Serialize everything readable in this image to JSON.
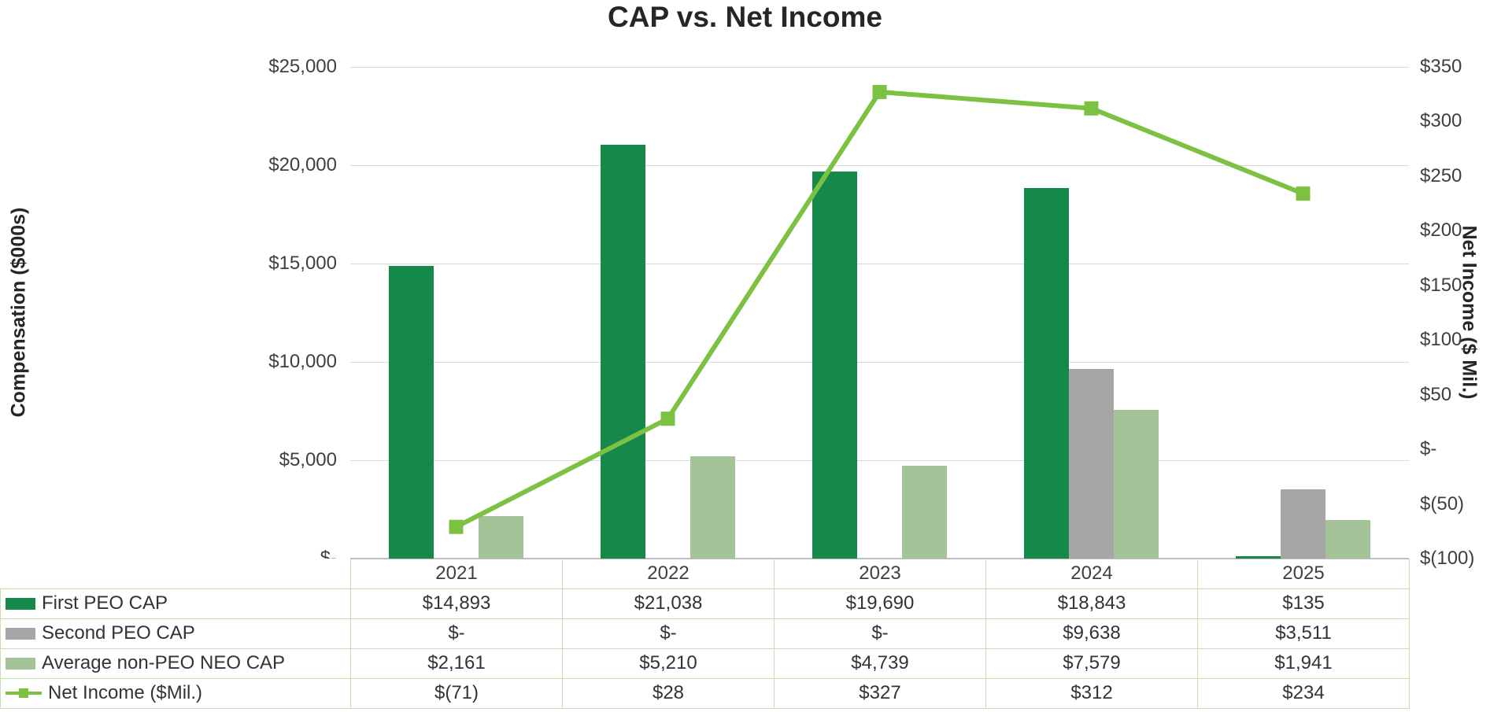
{
  "title": "CAP vs. Net Income",
  "left_axis": {
    "label": "Compensation ($000s)",
    "ticks": [
      "$25,000",
      "$20,000",
      "$15,000",
      "$10,000",
      "$5,000",
      "$-"
    ]
  },
  "right_axis": {
    "label": "Net Income ($ Mil.)",
    "ticks": [
      "$350",
      "$300",
      "$250",
      "$200",
      "$150",
      "$100",
      "$50",
      "$-",
      "$(50)",
      "$(100)"
    ]
  },
  "chart_data": {
    "type": "combo-bar-line",
    "title": "CAP vs. Net Income",
    "categories": [
      "2021",
      "2022",
      "2023",
      "2024",
      "2025"
    ],
    "bar_series": [
      {
        "name": "First PEO CAP",
        "color": "#15894a",
        "values": [
          14893,
          21038,
          19690,
          18843,
          135
        ],
        "display": [
          "$14,893",
          "$21,038",
          "$19,690",
          "$18,843",
          "$135"
        ]
      },
      {
        "name": "Second PEO CAP",
        "color": "#a6a6a6",
        "values": [
          0,
          0,
          0,
          9638,
          3511
        ],
        "display": [
          "$-",
          "$-",
          "$-",
          "$9,638",
          "$3,511"
        ]
      },
      {
        "name": "Average non-PEO NEO CAP",
        "color": "#a4c398",
        "values": [
          2161,
          5210,
          4739,
          7579,
          1941
        ],
        "display": [
          "$2,161",
          "$5,210",
          "$4,739",
          "$7,579",
          "$1,941"
        ]
      }
    ],
    "line_series": [
      {
        "name": "Net Income ($Mil.)",
        "color": "#7cc142",
        "values": [
          -71,
          28,
          327,
          312,
          234
        ],
        "display": [
          "$(71)",
          "$28",
          "$327",
          "$312",
          "$234"
        ]
      }
    ],
    "axes": {
      "left": {
        "min": 0,
        "max": 25000,
        "title": "Compensation ($000s)"
      },
      "right": {
        "min": -100,
        "max": 350,
        "title": "Net Income ($ Mil.)"
      }
    },
    "legend_position": "table-left",
    "grid": "horizontal"
  },
  "colors": {
    "gridline": "#d9d9d9",
    "axis_line": "#bfbfbf",
    "table_border": "#c6e0b4",
    "title_text": "#262626",
    "tick_text": "#3f3f3f"
  }
}
